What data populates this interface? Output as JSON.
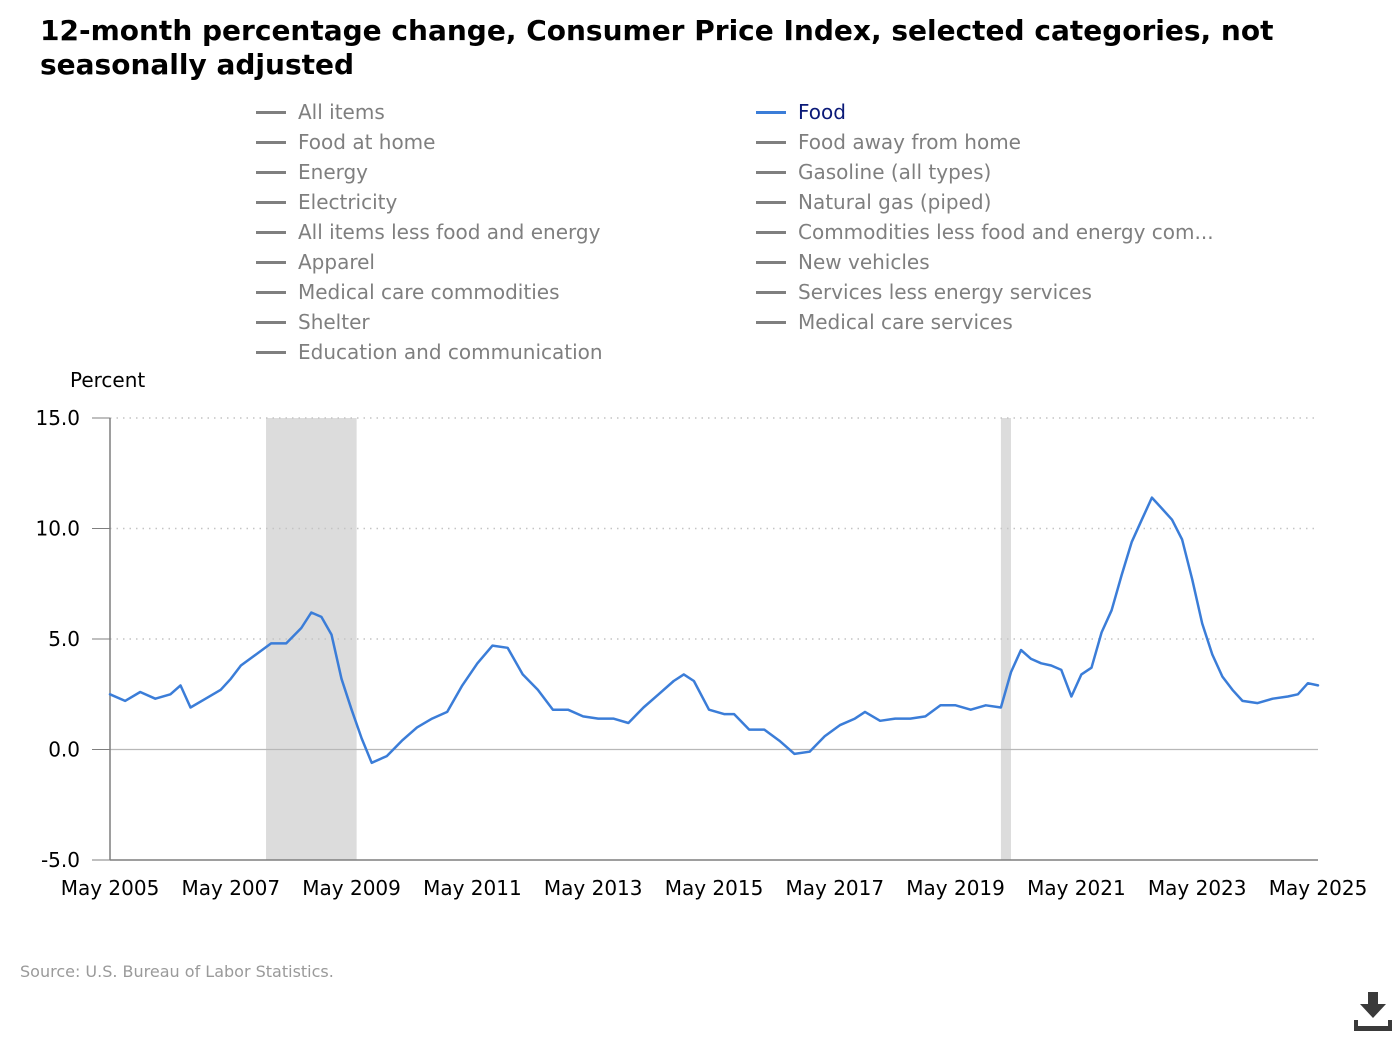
{
  "title": "12-month percentage change, Consumer Price Index, selected categories, not seasonally adjusted",
  "source": "Source: U.S. Bureau of Labor Statistics.",
  "icons": {
    "download": "download-icon"
  },
  "colors": {
    "active_series": "#3b7dd8",
    "inactive_series": "#7f7f7f",
    "active_label": "#0b1a78",
    "recession": "#dcdcdc"
  },
  "legend": {
    "left_column": [
      "All items",
      "Food at home",
      "Energy",
      "Electricity",
      "All items less food and energy",
      "Apparel",
      "Medical care commodities",
      "Shelter",
      "Education and communication"
    ],
    "right_column": [
      "Food",
      "Food away from home",
      "Gasoline (all types)",
      "Natural gas (piped)",
      "Commodities less food and energy com...",
      "New vehicles",
      "Services less energy services",
      "Medical care services"
    ],
    "active": "Food"
  },
  "chart_data": {
    "type": "line",
    "title": "12-month percentage change, Consumer Price Index, selected categories, not seasonally adjusted",
    "ylabel": "Percent",
    "xlabel": "",
    "ylim": [
      -5.0,
      15.0
    ],
    "y_ticks": [
      "15.0",
      "10.0",
      "5.0",
      "0.0",
      "-5.0"
    ],
    "x_ticks": [
      "May 2005",
      "May 2007",
      "May 2009",
      "May 2011",
      "May 2013",
      "May 2015",
      "May 2017",
      "May 2019",
      "May 2021",
      "May 2023",
      "May 2025"
    ],
    "x_range": [
      "May 2005",
      "May 2025"
    ],
    "grid": "horizontal dotted",
    "recessions": [
      [
        "Dec 2007",
        "Jun 2009"
      ],
      [
        "Feb 2020",
        "Apr 2020"
      ]
    ],
    "series": [
      {
        "name": "Food",
        "color": "#3b7dd8",
        "points": [
          [
            "May 2005",
            2.5
          ],
          [
            "Aug 2005",
            2.2
          ],
          [
            "Nov 2005",
            2.6
          ],
          [
            "Feb 2006",
            2.3
          ],
          [
            "May 2006",
            2.5
          ],
          [
            "Jul 2006",
            2.9
          ],
          [
            "Sep 2006",
            1.9
          ],
          [
            "Dec 2006",
            2.3
          ],
          [
            "Mar 2007",
            2.7
          ],
          [
            "May 2007",
            3.2
          ],
          [
            "Jul 2007",
            3.8
          ],
          [
            "Oct 2007",
            4.3
          ],
          [
            "Jan 2008",
            4.8
          ],
          [
            "Apr 2008",
            4.8
          ],
          [
            "Jul 2008",
            5.5
          ],
          [
            "Sep 2008",
            6.2
          ],
          [
            "Nov 2008",
            6.0
          ],
          [
            "Jan 2009",
            5.2
          ],
          [
            "Mar 2009",
            3.2
          ],
          [
            "May 2009",
            1.8
          ],
          [
            "Jul 2009",
            0.5
          ],
          [
            "Sep 2009",
            -0.6
          ],
          [
            "Dec 2009",
            -0.3
          ],
          [
            "Mar 2010",
            0.4
          ],
          [
            "Jun 2010",
            1.0
          ],
          [
            "Sep 2010",
            1.4
          ],
          [
            "Dec 2010",
            1.7
          ],
          [
            "Mar 2011",
            2.9
          ],
          [
            "Jun 2011",
            3.9
          ],
          [
            "Sep 2011",
            4.7
          ],
          [
            "Dec 2011",
            4.6
          ],
          [
            "Mar 2012",
            3.4
          ],
          [
            "Jun 2012",
            2.7
          ],
          [
            "Sep 2012",
            1.8
          ],
          [
            "Dec 2012",
            1.8
          ],
          [
            "Mar 2013",
            1.5
          ],
          [
            "Jun 2013",
            1.4
          ],
          [
            "Sep 2013",
            1.4
          ],
          [
            "Dec 2013",
            1.2
          ],
          [
            "Mar 2014",
            1.9
          ],
          [
            "Jun 2014",
            2.5
          ],
          [
            "Sep 2014",
            3.1
          ],
          [
            "Nov 2014",
            3.4
          ],
          [
            "Jan 2015",
            3.1
          ],
          [
            "Apr 2015",
            1.8
          ],
          [
            "Jul 2015",
            1.6
          ],
          [
            "Sep 2015",
            1.6
          ],
          [
            "Dec 2015",
            0.9
          ],
          [
            "Mar 2016",
            0.9
          ],
          [
            "Jun 2016",
            0.4
          ],
          [
            "Sep 2016",
            -0.2
          ],
          [
            "Dec 2016",
            -0.1
          ],
          [
            "Mar 2017",
            0.6
          ],
          [
            "Jun 2017",
            1.1
          ],
          [
            "Sep 2017",
            1.4
          ],
          [
            "Nov 2017",
            1.7
          ],
          [
            "Feb 2018",
            1.3
          ],
          [
            "May 2018",
            1.4
          ],
          [
            "Aug 2018",
            1.4
          ],
          [
            "Nov 2018",
            1.5
          ],
          [
            "Feb 2019",
            2.0
          ],
          [
            "May 2019",
            2.0
          ],
          [
            "Aug 2019",
            1.8
          ],
          [
            "Nov 2019",
            2.0
          ],
          [
            "Feb 2020",
            1.9
          ],
          [
            "Apr 2020",
            3.5
          ],
          [
            "Jun 2020",
            4.5
          ],
          [
            "Aug 2020",
            4.1
          ],
          [
            "Oct 2020",
            3.9
          ],
          [
            "Dec 2020",
            3.8
          ],
          [
            "Feb 2021",
            3.6
          ],
          [
            "Apr 2021",
            2.4
          ],
          [
            "Jun 2021",
            3.4
          ],
          [
            "Aug 2021",
            3.7
          ],
          [
            "Oct 2021",
            5.3
          ],
          [
            "Dec 2021",
            6.3
          ],
          [
            "Feb 2022",
            7.9
          ],
          [
            "Apr 2022",
            9.4
          ],
          [
            "Jun 2022",
            10.4
          ],
          [
            "Aug 2022",
            11.4
          ],
          [
            "Oct 2022",
            10.9
          ],
          [
            "Dec 2022",
            10.4
          ],
          [
            "Feb 2023",
            9.5
          ],
          [
            "Apr 2023",
            7.7
          ],
          [
            "Jun 2023",
            5.7
          ],
          [
            "Aug 2023",
            4.3
          ],
          [
            "Oct 2023",
            3.3
          ],
          [
            "Dec 2023",
            2.7
          ],
          [
            "Feb 2024",
            2.2
          ],
          [
            "May 2024",
            2.1
          ],
          [
            "Aug 2024",
            2.3
          ],
          [
            "Nov 2024",
            2.4
          ],
          [
            "Jan 2025",
            2.5
          ],
          [
            "Mar 2025",
            3.0
          ],
          [
            "May 2025",
            2.9
          ]
        ]
      }
    ]
  }
}
